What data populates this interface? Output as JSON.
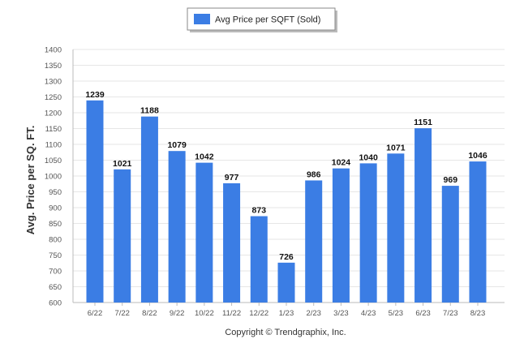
{
  "chart_data": {
    "type": "bar",
    "categories": [
      "6/22",
      "7/22",
      "8/22",
      "9/22",
      "10/22",
      "11/22",
      "12/22",
      "1/23",
      "2/23",
      "3/23",
      "4/23",
      "5/23",
      "6/23",
      "7/23",
      "8/23"
    ],
    "series": [
      {
        "name": "Avg Price per SQFT (Sold)",
        "values": [
          1239,
          1021,
          1188,
          1079,
          1042,
          977,
          873,
          726,
          986,
          1024,
          1040,
          1071,
          1151,
          969,
          1046
        ],
        "color": "#3b7de4"
      }
    ],
    "xlabel": "",
    "ylabel": "Avg. Price per SQ. FT.",
    "ylim": [
      600,
      1400
    ],
    "yticks": [
      600,
      650,
      700,
      750,
      800,
      850,
      900,
      950,
      1000,
      1050,
      1100,
      1150,
      1200,
      1250,
      1300,
      1350,
      1400
    ],
    "grid": true,
    "legend_position": "top-center",
    "data_labels": true
  },
  "copyright": "Copyright © Trendgraphix, Inc."
}
